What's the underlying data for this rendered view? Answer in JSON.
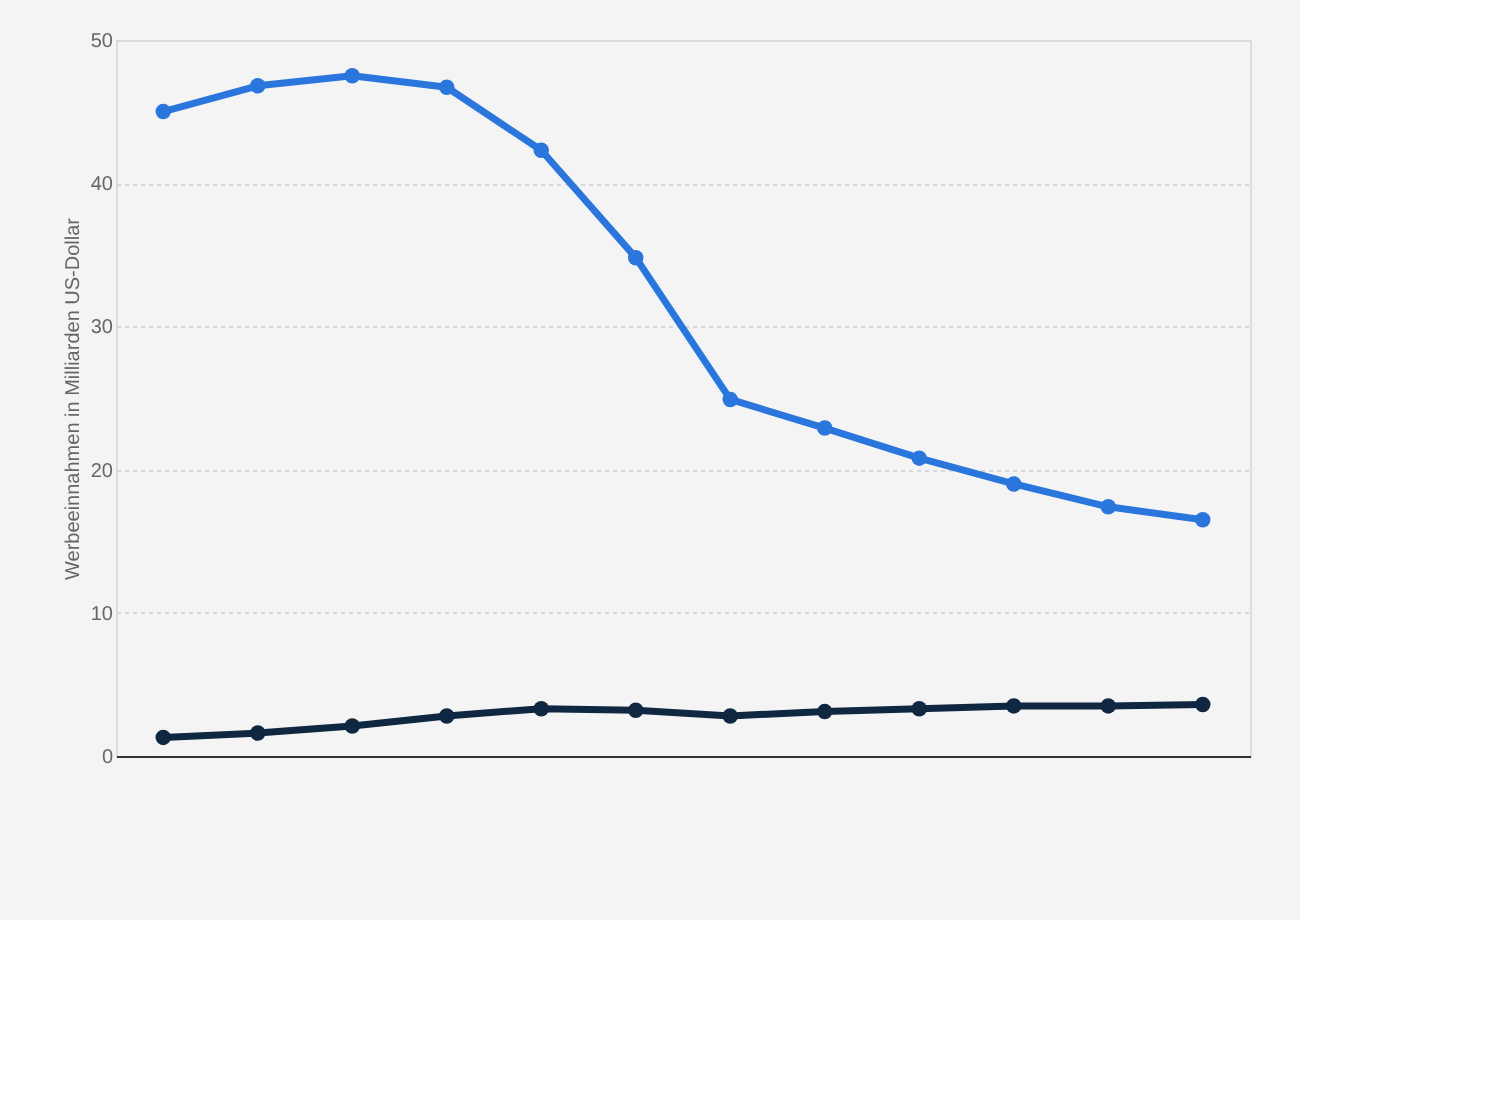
{
  "chart_data": {
    "type": "line",
    "ylabel": "Werbeeinnahmen in Milliarden US-Dollar",
    "categories": [
      null,
      null,
      null,
      null,
      null,
      null,
      null,
      null,
      null,
      null,
      null,
      null
    ],
    "series": [
      {
        "color": "#2a76dd",
        "values": [
          45.0,
          46.8,
          47.5,
          46.7,
          42.3,
          34.8,
          24.9,
          22.9,
          20.8,
          19.0,
          17.4,
          16.5
        ]
      },
      {
        "color": "#0f2741",
        "values": [
          1.3,
          1.6,
          2.1,
          2.8,
          3.3,
          3.2,
          2.8,
          3.1,
          3.3,
          3.5,
          3.5,
          3.6
        ]
      }
    ],
    "ylim": [
      0,
      50
    ],
    "yticks": [
      0,
      10,
      20,
      30,
      40,
      50
    ],
    "grid": "y",
    "marker": "circle",
    "line_style": "solid",
    "legend": false
  }
}
